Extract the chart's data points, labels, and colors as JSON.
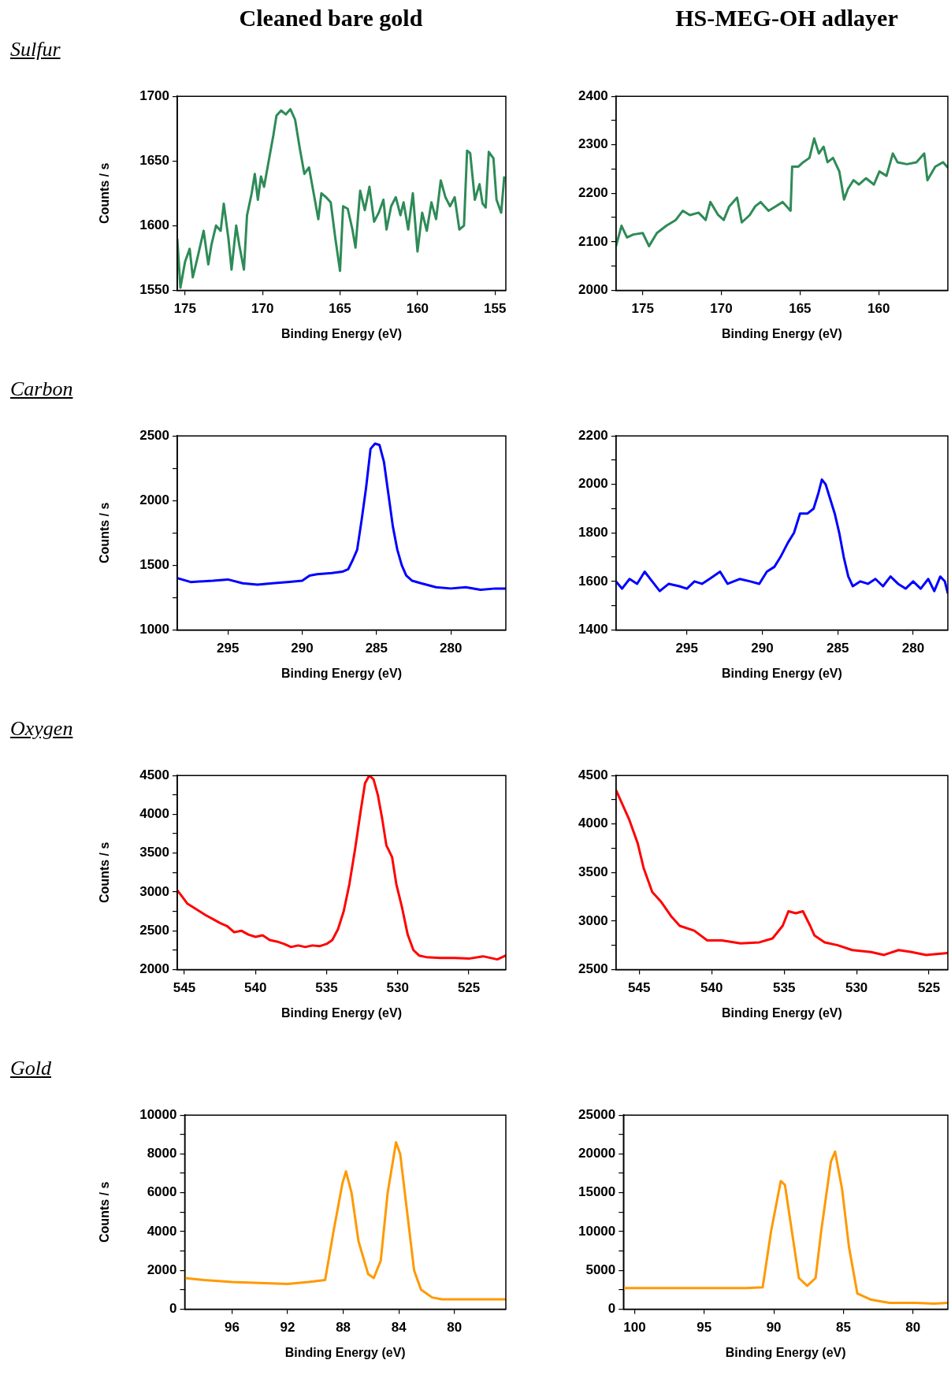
{
  "chart_data": [
    {
      "type": "line",
      "title": "Cleaned bare gold",
      "annotations": [
        "Sulfur"
      ],
      "xlabel": "Binding Energy (eV)",
      "ylabel": "Counts / s",
      "color": "#2e8b57",
      "xlim": [
        175.5,
        154.3
      ],
      "xticks": [
        175,
        170,
        165,
        160,
        155
      ],
      "ylim": [
        1550,
        1700
      ],
      "yticks": [
        1550,
        1600,
        1650,
        1700
      ],
      "x": [
        175.5,
        175.3,
        175.0,
        174.7,
        174.5,
        174.2,
        173.8,
        173.5,
        173.3,
        173.0,
        172.7,
        172.5,
        172.2,
        172.0,
        171.7,
        171.5,
        171.2,
        171.0,
        170.7,
        170.5,
        170.3,
        170.1,
        169.9,
        169.6,
        169.3,
        169.1,
        168.8,
        168.5,
        168.2,
        167.9,
        167.6,
        167.3,
        167.0,
        166.7,
        166.4,
        166.2,
        165.9,
        165.6,
        165.3,
        165.0,
        164.8,
        164.5,
        164.2,
        164.0,
        163.7,
        163.4,
        163.1,
        162.8,
        162.5,
        162.2,
        162.0,
        161.7,
        161.4,
        161.1,
        160.9,
        160.6,
        160.3,
        160.0,
        159.7,
        159.4,
        159.1,
        158.8,
        158.5,
        158.2,
        157.9,
        157.6,
        157.3,
        157.0,
        156.8,
        156.6,
        156.3,
        156.0,
        155.8,
        155.6,
        155.4,
        155.1,
        154.9,
        154.6,
        154.4
      ],
      "values": [
        1590,
        1552,
        1572,
        1582,
        1560,
        1575,
        1596,
        1570,
        1585,
        1600,
        1596,
        1617,
        1590,
        1566,
        1600,
        1585,
        1566,
        1608,
        1625,
        1640,
        1620,
        1638,
        1630,
        1650,
        1670,
        1685,
        1689,
        1686,
        1690,
        1682,
        1660,
        1640,
        1645,
        1625,
        1605,
        1625,
        1622,
        1618,
        1590,
        1565,
        1615,
        1613,
        1597,
        1583,
        1627,
        1612,
        1630,
        1603,
        1610,
        1620,
        1597,
        1615,
        1622,
        1608,
        1618,
        1597,
        1625,
        1580,
        1610,
        1596,
        1618,
        1605,
        1635,
        1622,
        1615,
        1622,
        1597,
        1600,
        1658,
        1656,
        1620,
        1632,
        1617,
        1614,
        1657,
        1652,
        1620,
        1610,
        1638
      ]
    },
    {
      "type": "line",
      "title": "HS-MEG-OH adlayer",
      "xlabel": "Binding Energy (eV)",
      "color": "#2e8b57",
      "xlim": [
        176.7,
        155.6
      ],
      "xticks": [
        175,
        170,
        165,
        160
      ],
      "ylim": [
        2000,
        2400
      ],
      "yticks": [
        2000,
        {
          "value": 2050,
          "label": null
        },
        2100,
        {
          "value": 2150,
          "label": null
        },
        2200,
        {
          "value": 2250,
          "label": null
        },
        2300,
        {
          "value": 2350,
          "label": null
        },
        2400
      ],
      "x": [
        176.7,
        176.35,
        176.0,
        175.6,
        175.0,
        174.6,
        174.1,
        173.5,
        172.9,
        172.45,
        172.0,
        171.45,
        171.0,
        170.7,
        170.2,
        169.85,
        169.5,
        169.0,
        168.7,
        168.2,
        167.85,
        167.5,
        167.0,
        166.55,
        166.1,
        165.6,
        165.5,
        165.1,
        164.8,
        164.4,
        164.1,
        163.8,
        163.5,
        163.25,
        162.9,
        162.5,
        162.2,
        161.95,
        161.6,
        161.25,
        160.8,
        160.3,
        159.95,
        159.5,
        159.1,
        158.8,
        158.2,
        157.6,
        157.1,
        156.9,
        156.4,
        155.9,
        155.6
      ],
      "values": [
        2091,
        2133,
        2109,
        2115,
        2118,
        2091,
        2118,
        2133,
        2145,
        2164,
        2155,
        2160,
        2145,
        2182,
        2155,
        2145,
        2173,
        2191,
        2140,
        2155,
        2173,
        2182,
        2164,
        2173,
        2182,
        2164,
        2255,
        2255,
        2264,
        2273,
        2313,
        2282,
        2296,
        2264,
        2273,
        2245,
        2187,
        2209,
        2227,
        2218,
        2231,
        2218,
        2245,
        2236,
        2282,
        2264,
        2260,
        2264,
        2282,
        2227,
        2255,
        2264,
        2253
      ]
    },
    {
      "type": "line",
      "annotations": [
        "Carbon"
      ],
      "xlabel": "Binding Energy (eV)",
      "ylabel": "Counts / s",
      "color": "#0000ff",
      "xlim": [
        298.4,
        276.3
      ],
      "xticks": [
        295,
        290,
        285,
        280
      ],
      "ylim": [
        1000,
        2500
      ],
      "yticks": [
        1000,
        {
          "value": 1250,
          "label": null
        },
        1500,
        {
          "value": 1750,
          "label": null
        },
        2000,
        {
          "value": 2250,
          "label": null
        },
        2500
      ],
      "x": [
        298.4,
        297.5,
        296,
        295,
        294,
        293,
        292,
        291,
        290,
        289.5,
        289,
        288,
        287.3,
        286.9,
        286.6,
        286.3,
        286.0,
        285.7,
        285.4,
        285.1,
        284.8,
        284.5,
        284.2,
        283.9,
        283.6,
        283.3,
        283.0,
        282.6,
        282,
        281,
        280,
        279,
        278,
        277,
        276.3
      ],
      "values": [
        1400,
        1370,
        1380,
        1390,
        1360,
        1350,
        1360,
        1370,
        1380,
        1420,
        1430,
        1440,
        1450,
        1470,
        1540,
        1620,
        1850,
        2100,
        2400,
        2440,
        2430,
        2300,
        2050,
        1800,
        1620,
        1500,
        1420,
        1380,
        1360,
        1330,
        1320,
        1330,
        1310,
        1320,
        1320
      ]
    },
    {
      "type": "line",
      "xlabel": "Binding Energy (eV)",
      "color": "#0000ff",
      "xlim": [
        299.7,
        277.7
      ],
      "xticks": [
        295,
        290,
        285,
        280
      ],
      "ylim": [
        1400,
        2200
      ],
      "yticks": [
        1400,
        {
          "value": 1500,
          "label": null
        },
        1600,
        {
          "value": 1700,
          "label": null
        },
        1800,
        {
          "value": 1900,
          "label": null
        },
        2000,
        {
          "value": 2100,
          "label": null
        },
        2200
      ],
      "x": [
        299.7,
        299.3,
        298.8,
        298.3,
        297.8,
        297.3,
        296.8,
        296.2,
        295.5,
        295,
        294.5,
        294,
        293.5,
        292.8,
        292.3,
        291.5,
        290.8,
        290.2,
        289.7,
        289.2,
        288.8,
        288.3,
        287.9,
        287.5,
        287.0,
        286.6,
        286.3,
        286.05,
        285.8,
        285.5,
        285.2,
        284.9,
        284.6,
        284.3,
        284.0,
        283.5,
        283,
        282.5,
        282,
        281.5,
        281,
        280.5,
        280,
        279.5,
        279,
        278.6,
        278.2,
        277.9,
        277.7
      ],
      "values": [
        1600,
        1570,
        1610,
        1590,
        1640,
        1600,
        1560,
        1590,
        1580,
        1570,
        1600,
        1590,
        1610,
        1640,
        1590,
        1610,
        1600,
        1590,
        1640,
        1660,
        1700,
        1760,
        1800,
        1880,
        1880,
        1900,
        1960,
        2020,
        2000,
        1940,
        1880,
        1800,
        1700,
        1620,
        1580,
        1600,
        1590,
        1610,
        1580,
        1620,
        1590,
        1570,
        1600,
        1570,
        1610,
        1560,
        1620,
        1600,
        1550
      ]
    },
    {
      "type": "line",
      "annotations": [
        "Oxygen"
      ],
      "xlabel": "Binding Energy (eV)",
      "ylabel": "Counts / s",
      "color": "#ff0000",
      "xlim": [
        545.5,
        522.4
      ],
      "xticks": [
        545,
        540,
        535,
        530,
        525
      ],
      "ylim": [
        2000,
        4500
      ],
      "yticks": [
        2000,
        {
          "value": 2250,
          "label": null
        },
        2500,
        {
          "value": 2750,
          "label": null
        },
        3000,
        {
          "value": 3250,
          "label": null
        },
        3500,
        {
          "value": 3750,
          "label": null
        },
        4000,
        {
          "value": 4250,
          "label": null
        },
        4500
      ],
      "x": [
        545.5,
        545.2,
        544.8,
        544.2,
        543.5,
        543,
        542.5,
        542,
        541.5,
        541,
        540.5,
        540,
        539.5,
        539,
        538.5,
        538,
        537.5,
        537,
        536.5,
        536,
        535.5,
        535,
        534.6,
        534.2,
        533.8,
        533.4,
        533.0,
        532.6,
        532.3,
        532.0,
        531.7,
        531.4,
        531.1,
        530.8,
        530.4,
        530.1,
        529.7,
        529.3,
        528.9,
        528.5,
        528,
        527,
        526,
        525,
        524,
        523,
        522.4
      ],
      "values": [
        3020,
        2950,
        2850,
        2780,
        2700,
        2650,
        2600,
        2560,
        2480,
        2500,
        2450,
        2420,
        2440,
        2380,
        2360,
        2330,
        2290,
        2310,
        2290,
        2310,
        2300,
        2330,
        2380,
        2520,
        2750,
        3100,
        3550,
        4050,
        4400,
        4500,
        4450,
        4250,
        3950,
        3600,
        3450,
        3100,
        2800,
        2450,
        2250,
        2180,
        2160,
        2150,
        2150,
        2140,
        2170,
        2130,
        2180
      ]
    },
    {
      "type": "line",
      "xlabel": "Binding Energy (eV)",
      "color": "#ff0000",
      "xlim": [
        546.6,
        523.7
      ],
      "xticks": [
        545,
        540,
        535,
        530,
        525
      ],
      "ylim": [
        2500,
        4500
      ],
      "yticks": [
        2500,
        {
          "value": 2750,
          "label": null
        },
        3000,
        {
          "value": 3250,
          "label": null
        },
        3500,
        {
          "value": 3750,
          "label": null
        },
        4000,
        {
          "value": 4250,
          "label": null
        },
        4500
      ],
      "x": [
        546.6,
        545.7,
        545.1,
        544.7,
        544.1,
        543.5,
        542.8,
        542.2,
        541.2,
        540.3,
        539.3,
        538,
        536.7,
        535.8,
        535.1,
        534.7,
        534.2,
        533.7,
        533.2,
        532.9,
        532.2,
        531.3,
        530.3,
        529.0,
        528.1,
        527.1,
        526.2,
        525.2,
        523.7
      ],
      "values": [
        4350,
        4050,
        3800,
        3550,
        3300,
        3200,
        3050,
        2950,
        2900,
        2800,
        2800,
        2770,
        2780,
        2820,
        2950,
        3100,
        3080,
        3100,
        2950,
        2850,
        2780,
        2750,
        2700,
        2680,
        2650,
        2700,
        2680,
        2650,
        2670
      ]
    },
    {
      "type": "line",
      "annotations": [
        "Gold"
      ],
      "xlabel": "Binding Energy (eV)",
      "ylabel": "Counts / s",
      "color": "#ff9900",
      "xlim": [
        99.4,
        76.3
      ],
      "xticks": [
        96,
        92,
        88,
        84,
        80
      ],
      "ylim": [
        0,
        10000
      ],
      "yticks": [
        0,
        {
          "value": 1000,
          "label": null
        },
        2000,
        {
          "value": 3000,
          "label": null
        },
        4000,
        {
          "value": 5000,
          "label": null
        },
        6000,
        {
          "value": 7000,
          "label": null
        },
        8000,
        {
          "value": 9000,
          "label": null
        },
        10000
      ],
      "x": [
        99.4,
        98,
        96,
        94,
        92,
        90.5,
        89.3,
        88.7,
        88.05,
        87.8,
        87.4,
        86.9,
        86.2,
        85.8,
        85.3,
        84.8,
        84.2,
        83.9,
        83.4,
        82.9,
        82.4,
        81.6,
        80.9,
        78,
        76.3
      ],
      "values": [
        1600,
        1500,
        1400,
        1350,
        1300,
        1400,
        1500,
        4000,
        6500,
        7100,
        6000,
        3500,
        1800,
        1600,
        2500,
        6000,
        8600,
        8000,
        5000,
        2000,
        1000,
        600,
        500,
        500,
        500
      ]
    },
    {
      "type": "line",
      "xlabel": "Binding Energy (eV)",
      "color": "#ff9900",
      "xlim": [
        100.8,
        77.5
      ],
      "xticks": [
        100,
        95,
        90,
        85,
        80
      ],
      "ylim": [
        0,
        25000
      ],
      "yticks": [
        0,
        {
          "value": 2500,
          "label": null
        },
        5000,
        {
          "value": 7500,
          "label": null
        },
        10000,
        {
          "value": 12500,
          "label": null
        },
        15000,
        {
          "value": 17500,
          "label": null
        },
        20000,
        {
          "value": 22500,
          "label": null
        },
        25000
      ],
      "x": [
        100.8,
        98,
        95,
        92,
        90.8,
        90.2,
        89.5,
        89.2,
        88.7,
        88.2,
        87.6,
        87.0,
        86.6,
        85.9,
        85.6,
        85.1,
        84.6,
        84.0,
        83.0,
        81.7,
        79.8,
        78.5,
        77.5
      ],
      "values": [
        2700,
        2700,
        2700,
        2700,
        2800,
        10000,
        16500,
        16000,
        10000,
        4000,
        3000,
        4000,
        10000,
        19000,
        20300,
        15500,
        8000,
        2000,
        1200,
        800,
        800,
        700,
        800
      ]
    }
  ]
}
